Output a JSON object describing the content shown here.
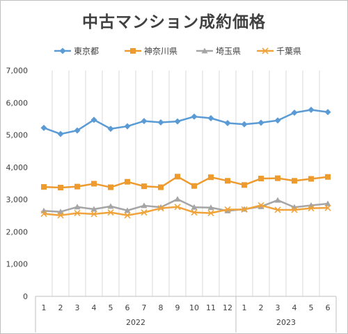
{
  "chart_data": {
    "type": "line",
    "title": "中古マンション成約価格",
    "x": [
      "1",
      "2",
      "3",
      "4",
      "5",
      "6",
      "7",
      "8",
      "9",
      "10",
      "11",
      "12",
      "1",
      "2",
      "3",
      "4",
      "5",
      "6"
    ],
    "year_groups": [
      {
        "label": "2022",
        "count": 12
      },
      {
        "label": "2023",
        "count": 6
      }
    ],
    "ylim": [
      0,
      7000
    ],
    "yticks": [
      0,
      1000,
      2000,
      3000,
      4000,
      5000,
      6000,
      7000
    ],
    "ytick_labels": [
      "0",
      "1,000",
      "2,000",
      "3,000",
      "4,000",
      "5,000",
      "6,000",
      "7,000"
    ],
    "grid": "vertical",
    "legend": "top",
    "series": [
      {
        "name": "東京都",
        "color": "#5B9BD5",
        "marker": "diamond",
        "values": [
          5220,
          5030,
          5140,
          5470,
          5190,
          5270,
          5430,
          5390,
          5420,
          5570,
          5520,
          5370,
          5330,
          5380,
          5450,
          5690,
          5780,
          5710
        ]
      },
      {
        "name": "神奈川県",
        "color": "#ED9A2E",
        "marker": "square",
        "values": [
          3390,
          3370,
          3400,
          3490,
          3380,
          3550,
          3410,
          3380,
          3710,
          3420,
          3690,
          3580,
          3450,
          3650,
          3660,
          3580,
          3640,
          3700
        ]
      },
      {
        "name": "埼玉県",
        "color": "#A5A5A5",
        "marker": "triangle",
        "values": [
          2650,
          2620,
          2770,
          2700,
          2790,
          2660,
          2810,
          2760,
          3010,
          2760,
          2750,
          2650,
          2700,
          2780,
          2980,
          2760,
          2820,
          2870
        ]
      },
      {
        "name": "千葉県",
        "color": "#F0A33A",
        "marker": "x",
        "values": [
          2560,
          2510,
          2580,
          2550,
          2600,
          2510,
          2600,
          2730,
          2770,
          2600,
          2580,
          2690,
          2690,
          2820,
          2680,
          2680,
          2730,
          2740
        ]
      }
    ]
  }
}
